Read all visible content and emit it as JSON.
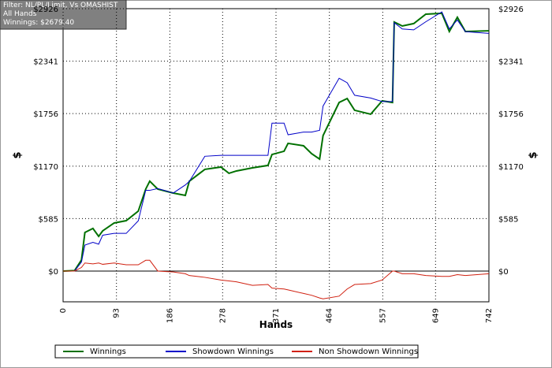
{
  "chart_data": {
    "type": "line",
    "info": [
      "Filter: NL/PL/Limit, Vs OMASHIST",
      "All Hands",
      "Winnings: $2679.40"
    ],
    "x_label": "Hands",
    "y_label": "$",
    "x": [
      0,
      20,
      32,
      38,
      52,
      62,
      69,
      89,
      110,
      131,
      144,
      151,
      165,
      192,
      213,
      220,
      247,
      275,
      289,
      302,
      330,
      357,
      364,
      385,
      392,
      419,
      433,
      447,
      453,
      481,
      495,
      508,
      536,
      556,
      574,
      577,
      591,
      611,
      632,
      660,
      673,
      687,
      701,
      742
    ],
    "series": [
      {
        "name": "Winnings",
        "color": "#007000",
        "values": [
          0,
          5,
          123,
          430,
          475,
          387,
          448,
          536,
          562,
          668,
          914,
          1002,
          914,
          870,
          844,
          1002,
          1134,
          1160,
          1090,
          1116,
          1151,
          1178,
          1300,
          1336,
          1424,
          1397,
          1309,
          1248,
          1511,
          1880,
          1924,
          1793,
          1749,
          1898,
          1880,
          2777,
          2733,
          2760,
          2865,
          2874,
          2671,
          2830,
          2671,
          2679.4
        ]
      },
      {
        "name": "Showdown Winnings",
        "color": "#0000c8",
        "values": [
          0,
          0,
          100,
          290,
          320,
          300,
          400,
          420,
          420,
          560,
          900,
          900,
          920,
          870,
          960,
          1000,
          1280,
          1290,
          1290,
          1290,
          1290,
          1290,
          1650,
          1650,
          1520,
          1550,
          1550,
          1570,
          1840,
          2150,
          2100,
          1960,
          1930,
          1890,
          1890,
          2770,
          2700,
          2690,
          2780,
          2890,
          2700,
          2800,
          2670,
          2650
        ]
      },
      {
        "name": "Non Showdown Winnings",
        "color": "#d02010",
        "values": [
          0,
          0,
          40,
          90,
          80,
          90,
          75,
          90,
          70,
          70,
          120,
          120,
          0,
          -10,
          -30,
          -50,
          -70,
          -100,
          -110,
          -120,
          -160,
          -150,
          -190,
          -200,
          -210,
          -250,
          -270,
          -300,
          -310,
          -280,
          -200,
          -150,
          -140,
          -100,
          0,
          0,
          -30,
          -30,
          -50,
          -60,
          -60,
          -40,
          -50,
          -30
        ]
      }
    ],
    "xlim": [
      0,
      742
    ],
    "xticks": [
      0,
      93,
      186,
      278,
      371,
      464,
      557,
      649,
      742
    ],
    "ylim": [
      -343,
      2926
    ],
    "yticks": [
      {
        "value": 0,
        "label": "$0"
      },
      {
        "value": 585,
        "label": "$585"
      },
      {
        "value": 1170,
        "label": "$1170"
      },
      {
        "value": 1756,
        "label": "$1756"
      },
      {
        "value": 2341,
        "label": "$2341"
      },
      {
        "value": 2926,
        "label": "$2926"
      }
    ],
    "grid": true
  }
}
